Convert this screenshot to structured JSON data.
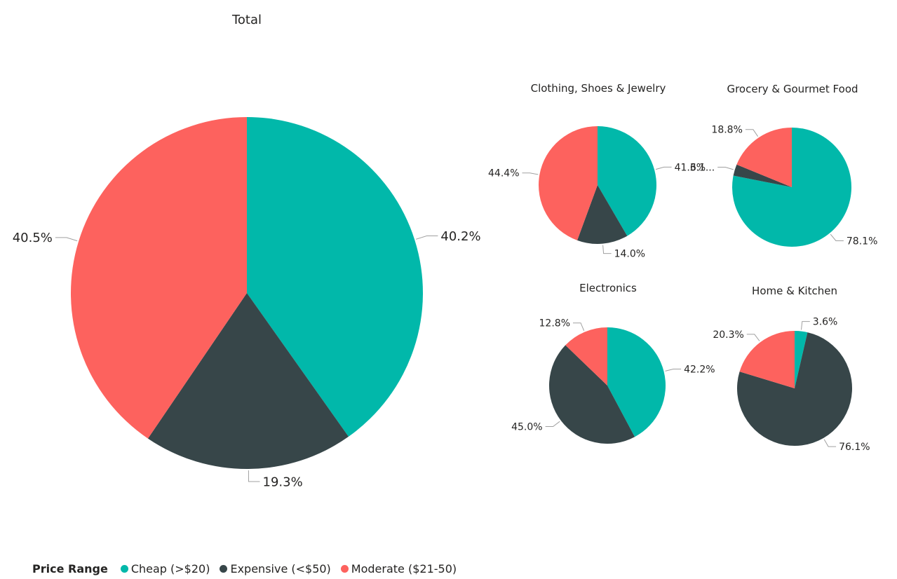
{
  "legend": {
    "title": "Price Range",
    "items": [
      {
        "label": "Cheap (>$20)",
        "color": "#01B8AA"
      },
      {
        "label": "Expensive (<$50)",
        "color": "#374649"
      },
      {
        "label": "Moderate ($21-50)",
        "color": "#FD625E"
      }
    ]
  },
  "chart_data": [
    {
      "type": "pie",
      "title": "Total",
      "categories": [
        "Cheap (>$20)",
        "Expensive (<$50)",
        "Moderate ($21-50)"
      ],
      "values": [
        40.2,
        19.3,
        40.5
      ],
      "labels": [
        "40.2%",
        "19.3%",
        "40.5%"
      ]
    },
    {
      "type": "pie",
      "title": "Clothing, Shoes & Jewelry",
      "categories": [
        "Cheap (>$20)",
        "Expensive (<$50)",
        "Moderate ($21-50)"
      ],
      "values": [
        41.6,
        14.0,
        44.4
      ],
      "labels": [
        "41.6%",
        "14.0%",
        "44.4%"
      ]
    },
    {
      "type": "pie",
      "title": "Grocery & Gourmet Food",
      "categories": [
        "Cheap (>$20)",
        "Expensive (<$50)",
        "Moderate ($21-50)"
      ],
      "values": [
        78.1,
        3.1,
        18.8
      ],
      "labels": [
        "78.1%",
        "3.1...",
        "18.8%"
      ]
    },
    {
      "type": "pie",
      "title": "Electronics",
      "categories": [
        "Cheap (>$20)",
        "Expensive (<$50)",
        "Moderate ($21-50)"
      ],
      "values": [
        42.2,
        45.0,
        12.8
      ],
      "labels": [
        "42.2%",
        "45.0%",
        "12.8%"
      ]
    },
    {
      "type": "pie",
      "title": "Home & Kitchen",
      "categories": [
        "Cheap (>$20)",
        "Expensive (<$50)",
        "Moderate ($21-50)"
      ],
      "values": [
        3.6,
        76.1,
        20.3
      ],
      "labels": [
        "3.6%",
        "76.1%",
        "20.3%"
      ]
    }
  ]
}
